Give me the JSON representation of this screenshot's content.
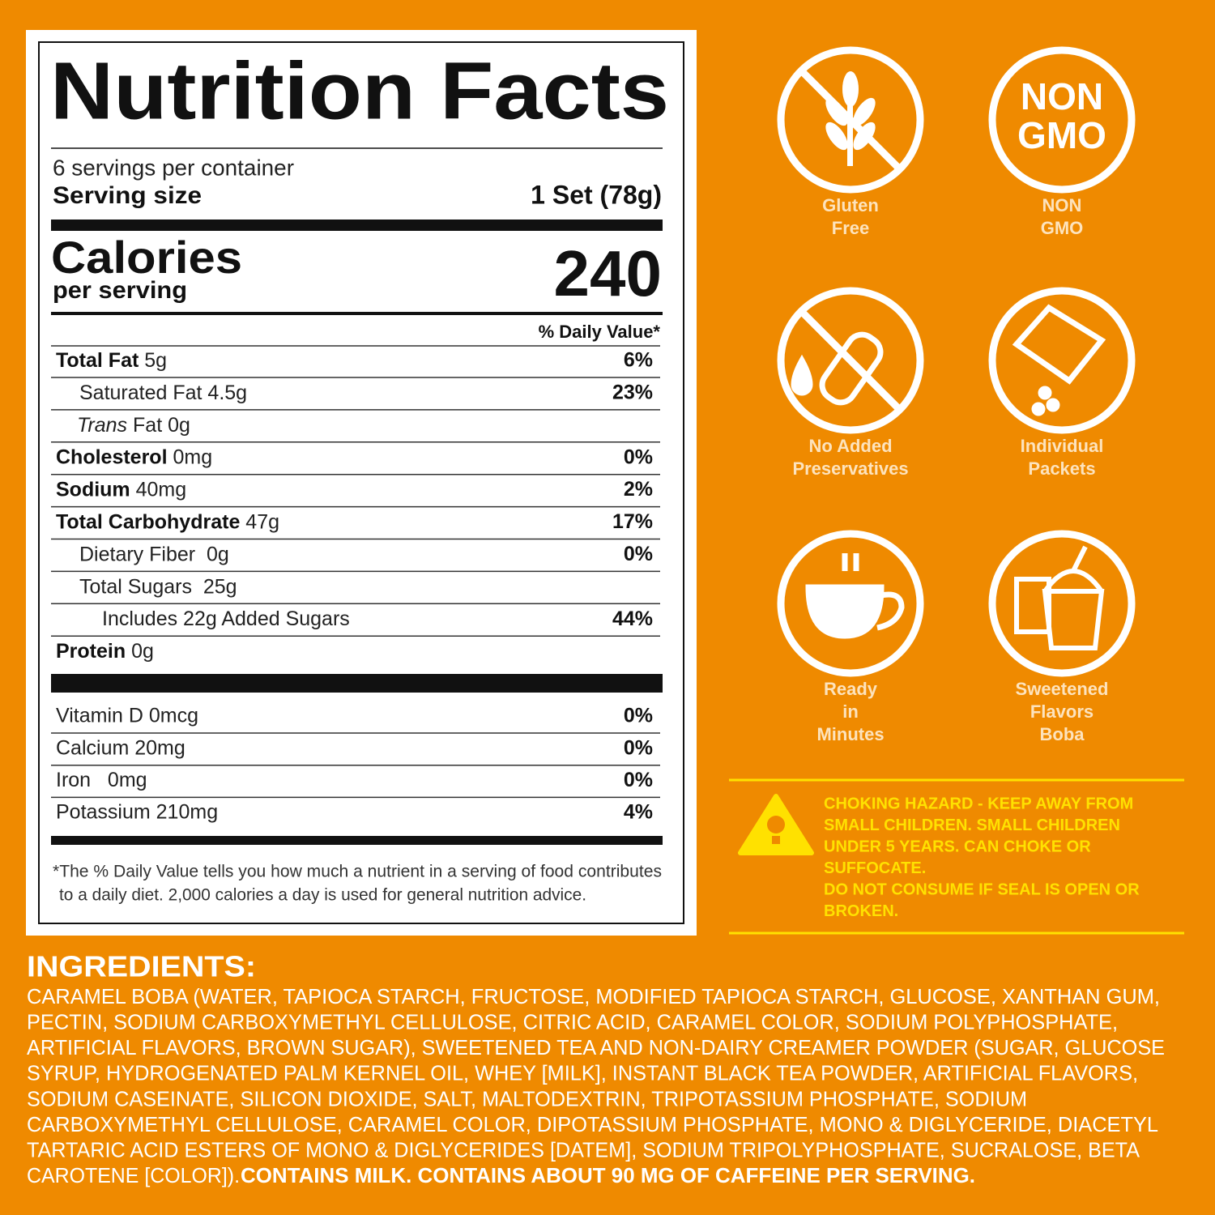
{
  "nutrition": {
    "title": "Nutrition Facts",
    "servings": "6 servings per container",
    "serving_size_label": "Serving size",
    "serving_size": "1 Set (78g)",
    "calories_label": "Calories",
    "calories_sub": "per serving",
    "calories": "240",
    "dv_header": "% Daily Value*",
    "rows": [
      {
        "name": "Total Fat",
        "amount": "5g",
        "dv": "6%"
      },
      {
        "name": "Saturated Fat 4.5g",
        "dv": "23%"
      },
      {
        "name": "Trans",
        "amount": "Fat 0g"
      },
      {
        "name": "Cholesterol",
        "amount": "0mg",
        "dv": "0%"
      },
      {
        "name": "Sodium",
        "amount": "40mg",
        "dv": "2%"
      },
      {
        "name": "Total Carbohydrate",
        "amount": "47g",
        "dv": "17%"
      },
      {
        "name": "Dietary Fiber  0g",
        "dv": "0%"
      },
      {
        "name": "Total Sugars  25g"
      },
      {
        "name": "Includes 22g Added Sugars",
        "dv": "44%"
      },
      {
        "name": "Protein",
        "amount": "0g"
      }
    ],
    "vitamins": [
      {
        "name": "Vitamin D 0mcg",
        "dv": "0%"
      },
      {
        "name": "Calcium 20mg",
        "dv": "0%"
      },
      {
        "name": "Iron   0mg",
        "dv": "0%"
      },
      {
        "name": "Potassium 210mg",
        "dv": "4%"
      }
    ],
    "footnote": [
      "*The % Daily Value tells you how much a nutrient in a serving of food contributes",
      "to a daily diet. 2,000 calories a day is used for general nutrition advice."
    ]
  },
  "badges": [
    {
      "lines": [
        "Gluten",
        "Free"
      ]
    },
    {
      "icon_text": [
        "NON",
        "GMO"
      ],
      "lines": [
        "NON",
        "GMO"
      ]
    },
    {
      "lines": [
        "No Added",
        "Preservatives"
      ]
    },
    {
      "lines": [
        "Individual",
        "Packets"
      ]
    },
    {
      "lines": [
        "Ready",
        "in",
        "Minutes"
      ]
    },
    {
      "lines": [
        "Sweetened",
        "Flavors",
        "Boba"
      ]
    }
  ],
  "warning": {
    "lines": [
      "CHOKING HAZARD - KEEP AWAY FROM",
      "SMALL CHILDREN. SMALL CHILDREN",
      "UNDER 5 YEARS. CAN CHOKE OR",
      "SUFFOCATE.",
      "DO NOT CONSUME IF SEAL IS OPEN OR",
      "BROKEN."
    ]
  },
  "ingredients": {
    "heading": "INGREDIENTS:",
    "lines": [
      "CARAMEL BOBA (WATER, TAPIOCA STARCH, FRUCTOSE, MODIFIED TAPIOCA STARCH, GLUCOSE, XANTHAN GUM,",
      "PECTIN, SODIUM CARBOXYMETHYL CELLULOSE, CITRIC ACID, CARAMEL COLOR, SODIUM POLYPHOSPHATE,",
      "ARTIFICIAL FLAVORS, BROWN SUGAR), SWEETENED TEA AND NON-DAIRY CREAMER POWDER (SUGAR, GLUCOSE",
      "SYRUP, HYDROGENATED PALM KERNEL OIL, WHEY [MILK], INSTANT BLACK TEA POWDER, ARTIFICIAL FLAVORS,",
      "SODIUM CASEINATE, SILICON DIOXIDE, SALT, MALTODEXTRIN, TRIPOTASSIUM PHOSPHATE, SODIUM",
      "CARBOXYMETHYL CELLULOSE, CARAMEL COLOR, DIPOTASSIUM PHOSPHATE, MONO & DIGLYCERIDE, DIACETYL",
      "TARTARIC ACID ESTERS OF MONO & DIGLYCERIDES [DATEM], SODIUM TRIPOLYPHOSPHATE, SUCRALOSE, BETA",
      "CAROTENE [COLOR])."
    ],
    "allergen": "CONTAINS MILK. CONTAINS ABOUT 90 MG OF CAFFEINE PER SERVING."
  }
}
